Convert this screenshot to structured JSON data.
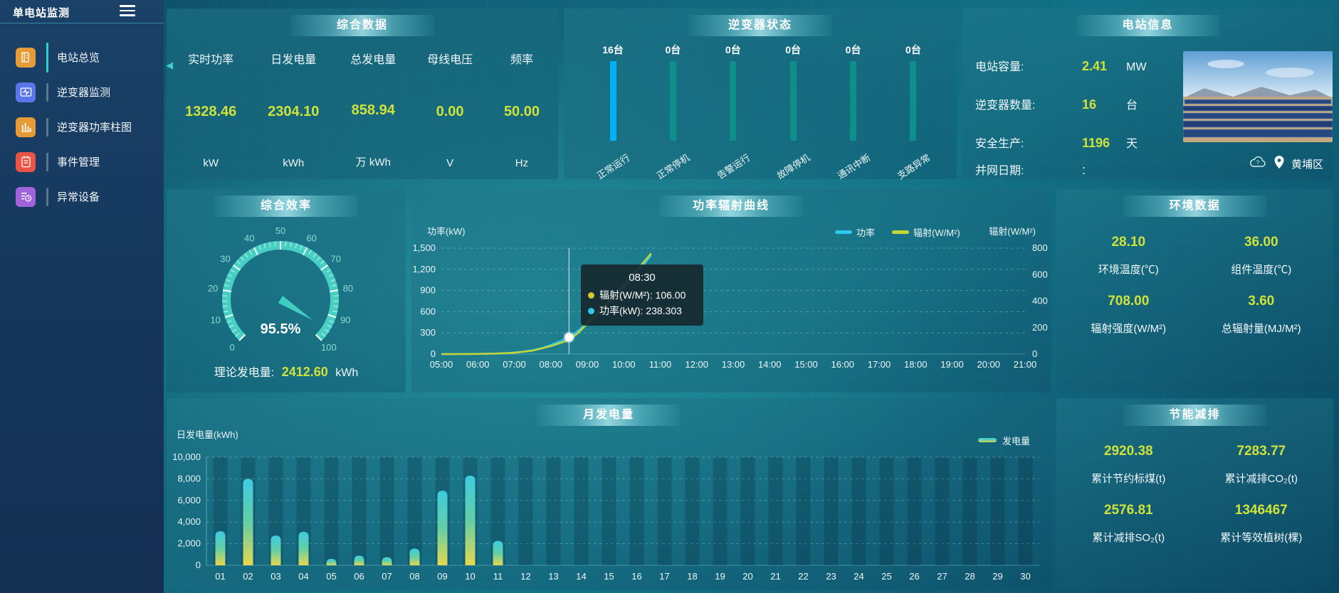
{
  "app": {
    "title": "单电站监测"
  },
  "sidebar": {
    "items": [
      {
        "label": "电站总览",
        "icon": "station-overview",
        "icon_color": "#e59b38",
        "active": true
      },
      {
        "label": "逆变器监测",
        "icon": "inverter-monitor",
        "icon_color": "#5b76e8",
        "active": false
      },
      {
        "label": "逆变器功率柱图",
        "icon": "inverter-power-bars",
        "icon_color": "#e59b38",
        "active": false
      },
      {
        "label": "事件管理",
        "icon": "event-management",
        "icon_color": "#ea5446",
        "active": false
      },
      {
        "label": "异常设备",
        "icon": "abnormal-device",
        "icon_color": "#a163d9",
        "active": false
      }
    ]
  },
  "panels": {
    "summary": {
      "title": "综合数据",
      "metrics": [
        {
          "label": "实时功率",
          "value": "1328.46",
          "unit": "kW"
        },
        {
          "label": "日发电量",
          "value": "2304.10",
          "unit": "kWh"
        },
        {
          "label": "总发电量",
          "value": "858.94",
          "unit": "万 kWh"
        },
        {
          "label": "母线电压",
          "value": "0.00",
          "unit": "V"
        },
        {
          "label": "频率",
          "value": "50.00",
          "unit": "Hz"
        }
      ]
    },
    "inverter_status": {
      "title": "逆变器状态"
    },
    "station_info": {
      "title": "电站信息",
      "rows": [
        {
          "label": "电站容量:",
          "value": "2.41",
          "unit": "MW",
          "plain": false
        },
        {
          "label": "逆变器数量:",
          "value": "16",
          "unit": "台",
          "plain": false
        },
        {
          "label": "安全生产:",
          "value": "1196",
          "unit": "天",
          "plain": false
        },
        {
          "label": "并网日期: ",
          "value": ":",
          "unit": "",
          "plain": true
        }
      ],
      "location": "黄埔区"
    },
    "efficiency": {
      "title": "综合效率",
      "theory_label": "理论发电量:",
      "theory_value": "2412.60",
      "theory_unit": "kWh"
    },
    "power_curve": {
      "title": "功率辐射曲线"
    },
    "environment": {
      "title": "环境数据",
      "metrics": [
        {
          "value": "28.10",
          "label": "环境温度(℃)"
        },
        {
          "value": "36.00",
          "label": "组件温度(℃)"
        },
        {
          "value": "708.00",
          "label": "辐射强度(W/M²)"
        },
        {
          "value": "3.60",
          "label": "总辐射量(MJ/M²)"
        }
      ]
    },
    "monthly": {
      "title": "月发电量"
    },
    "energy_saving": {
      "title": "节能减排",
      "metrics": [
        {
          "value": "2920.38",
          "label": "累计节约标煤(t)"
        },
        {
          "value": "7283.77",
          "label": "累计减排CO₂(t)"
        },
        {
          "value": "2576.81",
          "label": "累计减排SO₂(t)"
        },
        {
          "value": "1346467",
          "label": "累计等效植树(棵)"
        }
      ]
    }
  },
  "chart_data": [
    {
      "type": "line",
      "title": "功率辐射曲线",
      "left_axis": {
        "label": "功率(kW)",
        "max": 1500,
        "tick_labels": [
          "0",
          "300",
          "600",
          "900",
          "1,200",
          "1,500"
        ]
      },
      "right_axis": {
        "label": "辐射(W/M²)",
        "max": 800,
        "tick_labels": [
          "0",
          "200",
          "400",
          "600",
          "800"
        ]
      },
      "x_axis": {
        "start_hour": 5,
        "end_hour": 21,
        "tick_labels": [
          "05:00",
          "06:00",
          "07:00",
          "08:00",
          "09:00",
          "10:00",
          "11:00",
          "12:00",
          "13:00",
          "14:00",
          "15:00",
          "16:00",
          "17:00",
          "18:00",
          "19:00",
          "20:00",
          "21:00"
        ]
      },
      "grid": true,
      "legend_position": "top-right",
      "series": [
        {
          "name": "功率",
          "axis": "left",
          "color": "#2ec7f2",
          "points": [
            [
              5,
              0
            ],
            [
              5.5,
              1
            ],
            [
              6,
              3
            ],
            [
              6.25,
              5
            ],
            [
              6.5,
              8
            ],
            [
              6.75,
              12
            ],
            [
              7,
              22
            ],
            [
              7.25,
              35
            ],
            [
              7.5,
              55
            ],
            [
              7.75,
              85
            ],
            [
              8,
              130
            ],
            [
              8.25,
              180
            ],
            [
              8.5,
              238.3
            ],
            [
              8.75,
              330
            ],
            [
              9,
              450
            ],
            [
              9.25,
              560
            ],
            [
              9.5,
              680
            ],
            [
              9.75,
              800
            ],
            [
              10,
              940
            ],
            [
              10.25,
              1090
            ],
            [
              10.5,
              1230
            ],
            [
              10.75,
              1400
            ]
          ]
        },
        {
          "name": "辐射(W/M²)",
          "axis": "right",
          "color": "#c4d534",
          "points": [
            [
              5,
              0
            ],
            [
              5.5,
              0
            ],
            [
              6,
              1
            ],
            [
              6.5,
              4
            ],
            [
              7,
              10
            ],
            [
              7.5,
              26
            ],
            [
              8,
              60
            ],
            [
              8.5,
              106
            ],
            [
              8.75,
              160
            ],
            [
              9,
              230
            ],
            [
              9.25,
              300
            ],
            [
              9.5,
              370
            ],
            [
              9.75,
              440
            ],
            [
              10,
              520
            ],
            [
              10.25,
              600
            ],
            [
              10.5,
              680
            ],
            [
              10.75,
              760
            ]
          ]
        }
      ],
      "hover": {
        "hour": 8.5,
        "tooltip": {
          "title": "08:30",
          "rows": [
            {
              "label": "辐射(W/M²)",
              "value": "106.00",
              "color": "#d4c92a"
            },
            {
              "label": "功率(kW)",
              "value": "238.303",
              "color": "#2ec7f2"
            }
          ]
        }
      }
    },
    {
      "type": "bar",
      "title": "月发电量",
      "ylabel": "日发电量(kWh)",
      "legend": "发电量",
      "ylim": [
        0,
        10000
      ],
      "ytick_labels": [
        "0",
        "2,000",
        "4,000",
        "6,000",
        "8,000",
        "10,000"
      ],
      "categories": [
        "01",
        "02",
        "03",
        "04",
        "05",
        "06",
        "07",
        "08",
        "09",
        "10",
        "11",
        "12",
        "13",
        "14",
        "15",
        "16",
        "17",
        "18",
        "19",
        "20",
        "21",
        "22",
        "23",
        "24",
        "25",
        "26",
        "27",
        "28",
        "29",
        "30"
      ],
      "values": [
        3150,
        8000,
        2750,
        3100,
        600,
        900,
        750,
        1550,
        6900,
        8300,
        2250,
        0,
        0,
        0,
        0,
        0,
        0,
        0,
        0,
        0,
        0,
        0,
        0,
        0,
        0,
        0,
        0,
        0,
        0,
        0
      ],
      "bar_gradient": [
        "#3ecbe0",
        "#62cfa6",
        "#e5d84e"
      ]
    },
    {
      "type": "gauge",
      "title": "综合效率",
      "value": 95.5,
      "value_label": "95.5%",
      "min": 0,
      "max": 100,
      "major_tick": 10,
      "band_color": "#46cfc2"
    },
    {
      "type": "bar",
      "title": "逆变器状态",
      "categories": [
        "正常运行",
        "正常停机",
        "告警运行",
        "故障停机",
        "通讯中断",
        "支路异常"
      ],
      "values": [
        16,
        0,
        0,
        0,
        0,
        0
      ],
      "count_labels": [
        "16台",
        "0台",
        "0台",
        "0台",
        "0台",
        "0台"
      ],
      "highlight_color": "#00b2f3",
      "bar_color": "#0f8f8a"
    }
  ]
}
